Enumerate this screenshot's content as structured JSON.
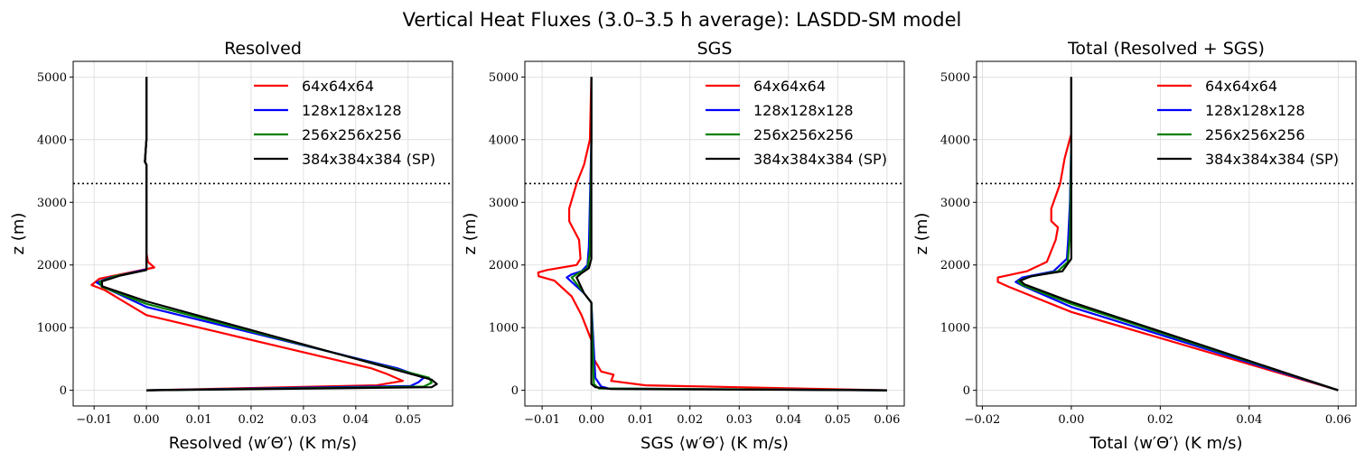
{
  "figure": {
    "title": "Vertical Heat Fluxes (3.0–3.5 h average): LASDD-SM model"
  },
  "chart_data": [
    {
      "type": "line",
      "title": "Resolved",
      "xlabel": "Resolved ⟨w′Θ′⟩ (K m/s)",
      "ylabel": "z (m)",
      "xlim": [
        -0.014,
        0.0585
      ],
      "ylim": [
        -250,
        5250
      ],
      "xticks": [
        -0.01,
        0.0,
        0.01,
        0.02,
        0.03,
        0.04,
        0.05
      ],
      "xtick_labels": [
        "−0.01",
        "0.00",
        "0.01",
        "0.02",
        "0.03",
        "0.04",
        "0.05"
      ],
      "yticks": [
        0,
        1000,
        2000,
        3000,
        4000,
        5000
      ],
      "ytick_labels": [
        "0",
        "1000",
        "2000",
        "3000",
        "4000",
        "5000"
      ],
      "hline": 3300,
      "grid": true,
      "legend_position": "upper-right",
      "series": [
        {
          "name": "64x64x64",
          "color": "#ff0000",
          "points": [
            [
              0.0,
              0
            ],
            [
              0.044,
              80
            ],
            [
              0.049,
              150
            ],
            [
              0.046,
              260
            ],
            [
              0.043,
              350
            ],
            [
              0.0,
              1200
            ],
            [
              -0.008,
              1600
            ],
            [
              -0.0105,
              1680
            ],
            [
              -0.009,
              1780
            ],
            [
              0.0015,
              1960
            ],
            [
              0.0003,
              2050
            ],
            [
              0.0,
              2200
            ],
            [
              0.0,
              3600
            ],
            [
              -0.0003,
              3650
            ],
            [
              0.0,
              4000
            ],
            [
              0.0,
              5000
            ]
          ]
        },
        {
          "name": "128x128x128",
          "color": "#0000ff",
          "points": [
            [
              0.0,
              0
            ],
            [
              0.0505,
              70
            ],
            [
              0.052,
              130
            ],
            [
              0.053,
              200
            ],
            [
              0.048,
              350
            ],
            [
              0.0,
              1330
            ],
            [
              -0.008,
              1640
            ],
            [
              -0.0095,
              1720
            ],
            [
              -0.007,
              1800
            ],
            [
              0.0,
              1930
            ],
            [
              0.0,
              3600
            ],
            [
              -0.0003,
              3650
            ],
            [
              0.0,
              4000
            ],
            [
              0.0,
              5000
            ]
          ]
        },
        {
          "name": "256x256x256",
          "color": "#008000",
          "points": [
            [
              0.0,
              0
            ],
            [
              0.053,
              60
            ],
            [
              0.0545,
              120
            ],
            [
              0.054,
              200
            ],
            [
              0.0,
              1380
            ],
            [
              -0.0085,
              1650
            ],
            [
              -0.009,
              1730
            ],
            [
              -0.006,
              1820
            ],
            [
              0.0,
              1920
            ],
            [
              0.0,
              3600
            ],
            [
              -0.0003,
              3650
            ],
            [
              0.0,
              4000
            ],
            [
              0.0,
              5000
            ]
          ]
        },
        {
          "name": "384x384x384 (SP)",
          "color": "#000000",
          "points": [
            [
              0.0,
              0
            ],
            [
              0.0545,
              50
            ],
            [
              0.0555,
              100
            ],
            [
              0.0545,
              170
            ],
            [
              0.0,
              1420
            ],
            [
              -0.0085,
              1660
            ],
            [
              -0.0085,
              1740
            ],
            [
              -0.005,
              1830
            ],
            [
              0.0,
              1920
            ],
            [
              0.0,
              3600
            ],
            [
              -0.0003,
              3650
            ],
            [
              0.0,
              4000
            ],
            [
              0.0,
              5000
            ]
          ]
        }
      ]
    },
    {
      "type": "line",
      "title": "SGS",
      "xlabel": "SGS ⟨w′Θ′⟩ (K m/s)",
      "ylabel": "z (m)",
      "xlim": [
        -0.0135,
        0.0635
      ],
      "ylim": [
        -250,
        5250
      ],
      "xticks": [
        -0.01,
        0.0,
        0.01,
        0.02,
        0.03,
        0.04,
        0.05,
        0.06
      ],
      "xtick_labels": [
        "−0.01",
        "0.00",
        "0.01",
        "0.02",
        "0.03",
        "0.04",
        "0.05",
        "0.06"
      ],
      "yticks": [
        0,
        1000,
        2000,
        3000,
        4000,
        5000
      ],
      "ytick_labels": [
        "0",
        "1000",
        "2000",
        "3000",
        "4000",
        "5000"
      ],
      "hline": 3300,
      "grid": true,
      "legend_position": "upper-right",
      "series": [
        {
          "name": "64x64x64",
          "color": "#ff0000",
          "points": [
            [
              0.06,
              0
            ],
            [
              0.011,
              80
            ],
            [
              0.004,
              150
            ],
            [
              0.0045,
              250
            ],
            [
              0.002,
              300
            ],
            [
              0.0005,
              500
            ],
            [
              0.0,
              800
            ],
            [
              -0.001,
              1000
            ],
            [
              -0.002,
              1200
            ],
            [
              -0.004,
              1500
            ],
            [
              -0.0075,
              1750
            ],
            [
              -0.0107,
              1820
            ],
            [
              -0.0108,
              1880
            ],
            [
              -0.009,
              1920
            ],
            [
              -0.003,
              2000
            ],
            [
              -0.0022,
              2100
            ],
            [
              -0.0025,
              2400
            ],
            [
              -0.0045,
              2700
            ],
            [
              -0.0045,
              2900
            ],
            [
              -0.003,
              3300
            ],
            [
              -0.0015,
              3600
            ],
            [
              -0.0003,
              4000
            ],
            [
              0.0,
              5000
            ]
          ]
        },
        {
          "name": "128x128x128",
          "color": "#0000ff",
          "points": [
            [
              0.06,
              0
            ],
            [
              0.0035,
              30
            ],
            [
              0.002,
              60
            ],
            [
              0.0008,
              200
            ],
            [
              0.0,
              1400
            ],
            [
              -0.0015,
              1550
            ],
            [
              -0.005,
              1800
            ],
            [
              -0.004,
              1850
            ],
            [
              -0.002,
              1900
            ],
            [
              -0.0008,
              2000
            ],
            [
              -0.0005,
              2300
            ],
            [
              -0.0003,
              3000
            ],
            [
              0.0,
              4000
            ],
            [
              0.0,
              5000
            ]
          ]
        },
        {
          "name": "256x256x256",
          "color": "#008000",
          "points": [
            [
              0.06,
              0
            ],
            [
              0.0015,
              30
            ],
            [
              0.0005,
              100
            ],
            [
              0.0,
              1400
            ],
            [
              -0.0015,
              1550
            ],
            [
              -0.004,
              1800
            ],
            [
              -0.003,
              1850
            ],
            [
              -0.0008,
              1950
            ],
            [
              -0.0003,
              2200
            ],
            [
              0.0,
              4000
            ],
            [
              0.0,
              5000
            ]
          ]
        },
        {
          "name": "384x384x384 (SP)",
          "color": "#000000",
          "points": [
            [
              0.06,
              0
            ],
            [
              0.004,
              20
            ],
            [
              0.0008,
              50
            ],
            [
              0.0,
              100
            ],
            [
              0.0,
              1400
            ],
            [
              -0.0015,
              1550
            ],
            [
              -0.003,
              1800
            ],
            [
              -0.002,
              1870
            ],
            [
              -0.0005,
              1950
            ],
            [
              0.0,
              2100
            ],
            [
              0.0,
              5000
            ]
          ]
        }
      ]
    },
    {
      "type": "line",
      "title": "Total (Resolved + SGS)",
      "xlabel": "Total ⟨w′Θ′⟩ (K m/s)",
      "ylabel": "z (m)",
      "xlim": [
        -0.0213,
        0.064
      ],
      "ylim": [
        -250,
        5250
      ],
      "xticks": [
        -0.02,
        0.0,
        0.02,
        0.04,
        0.06
      ],
      "xtick_labels": [
        "−0.02",
        "0.00",
        "0.02",
        "0.04",
        "0.06"
      ],
      "yticks": [
        0,
        1000,
        2000,
        3000,
        4000,
        5000
      ],
      "ytick_labels": [
        "0",
        "1000",
        "2000",
        "3000",
        "4000",
        "5000"
      ],
      "hline": 3300,
      "grid": true,
      "legend_position": "upper-right",
      "series": [
        {
          "name": "64x64x64",
          "color": "#ff0000",
          "points": [
            [
              0.06,
              0
            ],
            [
              0.0,
              1250
            ],
            [
              -0.014,
              1650
            ],
            [
              -0.0165,
              1730
            ],
            [
              -0.0165,
              1800
            ],
            [
              -0.01,
              1900
            ],
            [
              -0.0055,
              2050
            ],
            [
              -0.0035,
              2400
            ],
            [
              -0.003,
              2600
            ],
            [
              -0.0045,
              2700
            ],
            [
              -0.0045,
              2900
            ],
            [
              -0.0025,
              3300
            ],
            [
              -0.0015,
              3700
            ],
            [
              0.0,
              4100
            ],
            [
              0.0,
              5000
            ]
          ]
        },
        {
          "name": "128x128x128",
          "color": "#0000ff",
          "points": [
            [
              0.06,
              0
            ],
            [
              0.0,
              1330
            ],
            [
              -0.011,
              1670
            ],
            [
              -0.0125,
              1730
            ],
            [
              -0.011,
              1800
            ],
            [
              -0.004,
              1900
            ],
            [
              -0.001,
              2100
            ],
            [
              -0.0007,
              2400
            ],
            [
              -0.0003,
              3000
            ],
            [
              0.0,
              4000
            ],
            [
              0.0,
              5000
            ]
          ]
        },
        {
          "name": "256x256x256",
          "color": "#008000",
          "points": [
            [
              0.06,
              0
            ],
            [
              0.0,
              1380
            ],
            [
              -0.011,
              1680
            ],
            [
              -0.012,
              1740
            ],
            [
              -0.0095,
              1810
            ],
            [
              -0.003,
              1900
            ],
            [
              -0.0008,
              2050
            ],
            [
              -0.0003,
              2500
            ],
            [
              0.0,
              4000
            ],
            [
              0.0,
              5000
            ]
          ]
        },
        {
          "name": "384x384x384 (SP)",
          "color": "#000000",
          "points": [
            [
              0.06,
              0
            ],
            [
              0.0,
              1410
            ],
            [
              -0.0105,
              1690
            ],
            [
              -0.0115,
              1750
            ],
            [
              -0.009,
              1820
            ],
            [
              -0.002,
              1900
            ],
            [
              0.0,
              2100
            ],
            [
              0.0,
              5000
            ]
          ]
        }
      ]
    }
  ]
}
